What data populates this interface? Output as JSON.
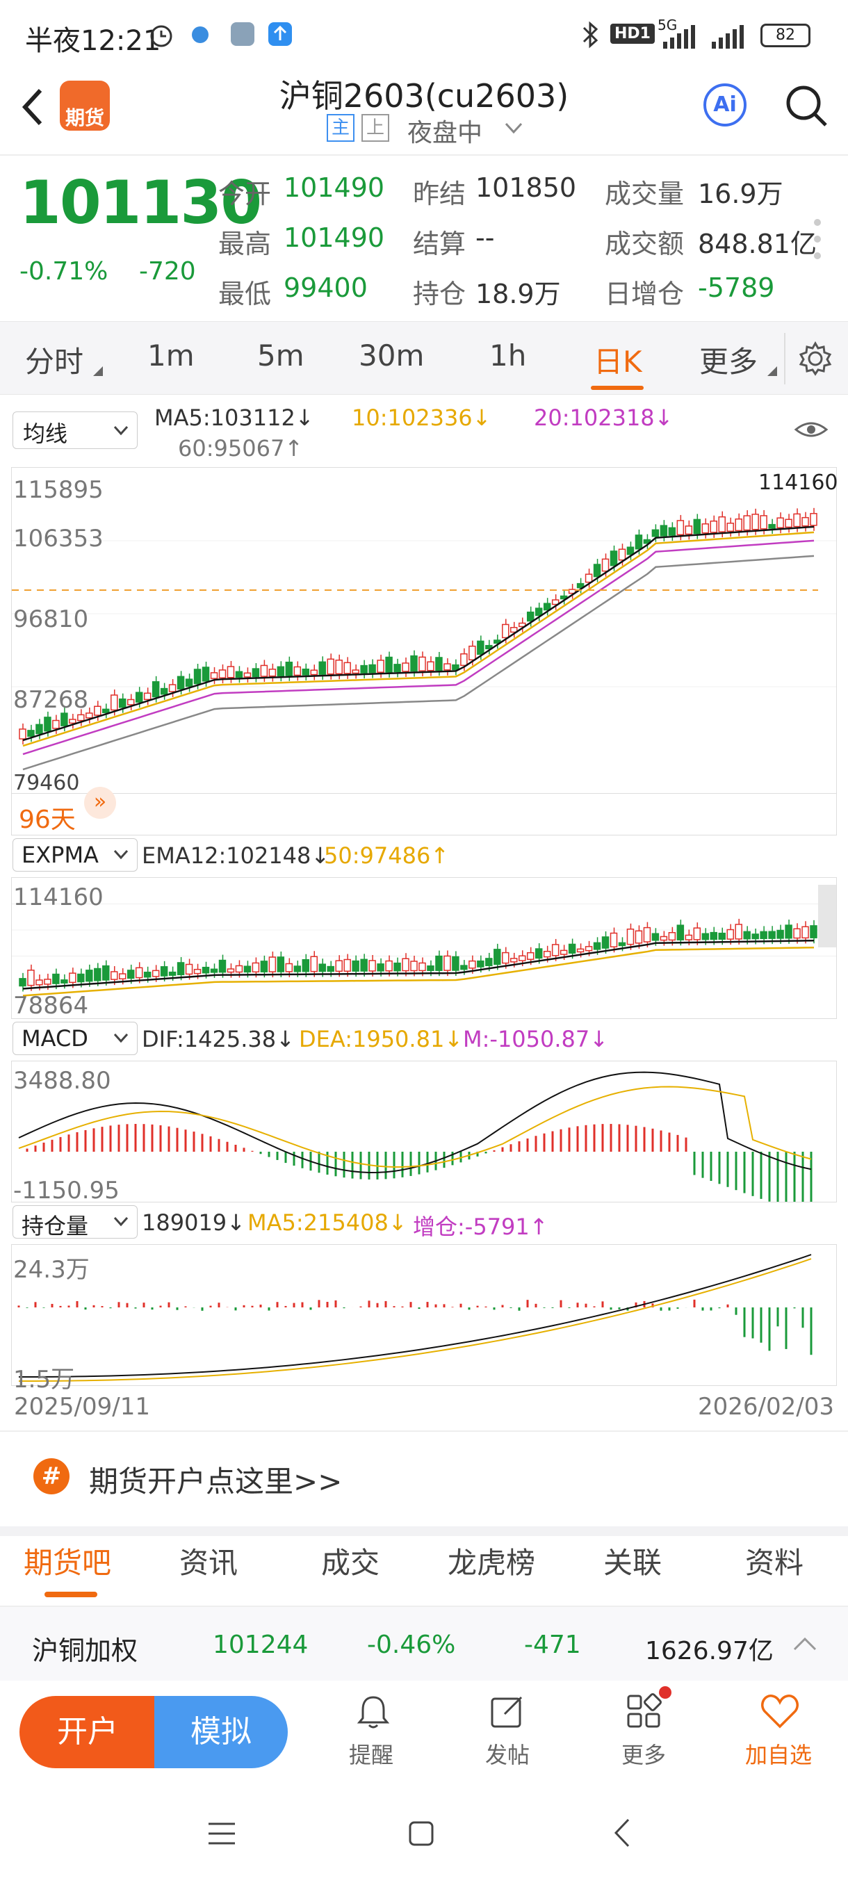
{
  "status": {
    "time": "半夜12:21",
    "network": "5G",
    "hd": "HD1",
    "battery": "82"
  },
  "header": {
    "logo_text": "期货",
    "title": "沪铜2603(cu2603)",
    "badge_main": "主",
    "badge_up": "上",
    "session": "夜盘中",
    "ai_label": "Ai"
  },
  "quote": {
    "price": "101130",
    "change_pct": "-0.71%",
    "change": "-720",
    "open_label": "今开",
    "open": "101490",
    "prev_close_label": "昨结",
    "prev_close": "101850",
    "volume_label": "成交量",
    "volume": "16.9万",
    "high_label": "最高",
    "high": "101490",
    "settle_label": "结算",
    "settle": "--",
    "amount_label": "成交额",
    "amount": "848.81亿",
    "low_label": "最低",
    "low": "99400",
    "oi_label": "持仓",
    "oi": "18.9万",
    "oi_change_label": "日增仓",
    "oi_change": "-5789"
  },
  "period_tabs": [
    "分时",
    "1m",
    "5m",
    "30m",
    "1h",
    "日K",
    "更多"
  ],
  "active_period": "日K",
  "ma": {
    "select": "均线",
    "ma5": "MA5:103112↓",
    "ma10": "10:102336↓",
    "ma20": "20:102318↓",
    "ma60": "60:95067↑"
  },
  "main_chart": {
    "y_labels": [
      "115895",
      "106353",
      "96810",
      "87268",
      "79460"
    ],
    "high_label": "114160",
    "days": "96天"
  },
  "expma": {
    "select": "EXPMA",
    "ema12": "EMA12:102148↓",
    "ema50": "50:97486↑",
    "y_top": "114160",
    "y_bottom": "78864"
  },
  "macd": {
    "select": "MACD",
    "dif": "DIF:1425.38↓",
    "dea": "DEA:1950.81↓",
    "m": "M:-1050.87↓",
    "y_top": "3488.80",
    "y_bottom": "-1150.95"
  },
  "oi_panel": {
    "select": "持仓量",
    "value": "189019↓",
    "ma5": "MA5:215408↓",
    "change": "增仓:-5791↑",
    "y_top": "24.3万",
    "y_bottom": "1.5万",
    "date_start": "2025/09/11",
    "date_end": "2026/02/03"
  },
  "promo": "期货开户点这里>>",
  "bottom_tabs": [
    "期货吧",
    "资讯",
    "成交",
    "龙虎榜",
    "关联",
    "资料"
  ],
  "active_bottom_tab": "期货吧",
  "weighted": {
    "name": "沪铜加权",
    "price": "101244",
    "pct": "-0.46%",
    "change": "-471",
    "amount": "1626.97亿"
  },
  "bottom_bar": {
    "open_account": "开户",
    "simulate": "模拟",
    "remind": "提醒",
    "post": "发帖",
    "more": "更多",
    "watchlist": "加自选"
  },
  "colors": {
    "up": "#e0302a",
    "down": "#1a9a3a",
    "accent": "#f06a10",
    "blue": "#3d8ff0"
  }
}
